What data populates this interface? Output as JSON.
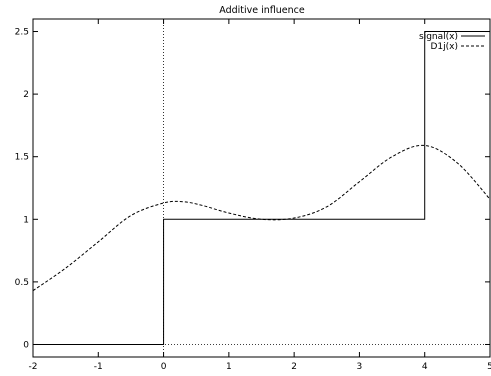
{
  "chart_data": {
    "type": "line",
    "title": "Additive influence",
    "xlabel": "",
    "ylabel": "",
    "xlim": [
      -2,
      5
    ],
    "ylim": [
      -0.1,
      2.6
    ],
    "x_ticks": [
      -2,
      -1,
      0,
      1,
      2,
      3,
      4,
      5
    ],
    "y_ticks": [
      0,
      0.5,
      1,
      1.5,
      2,
      2.5
    ],
    "legend_position": "top-right",
    "grid": false,
    "zero_axes": "dotted",
    "series": [
      {
        "name": "signal(x)",
        "style": "solid",
        "x": [
          -2,
          0,
          0,
          4,
          4,
          5
        ],
        "y": [
          0,
          0,
          1,
          1,
          2.5,
          2.5
        ]
      },
      {
        "name": "D1j(x)",
        "style": "dashed",
        "x": [
          -2,
          -1.5,
          -1,
          -0.5,
          0,
          0.3,
          0.6,
          1,
          1.5,
          2,
          2.5,
          3,
          3.5,
          4,
          4.5,
          5
        ],
        "y": [
          0.43,
          0.61,
          0.82,
          1.03,
          1.13,
          1.14,
          1.11,
          1.05,
          1.0,
          1.01,
          1.1,
          1.3,
          1.5,
          1.59,
          1.45,
          1.16
        ]
      }
    ]
  }
}
